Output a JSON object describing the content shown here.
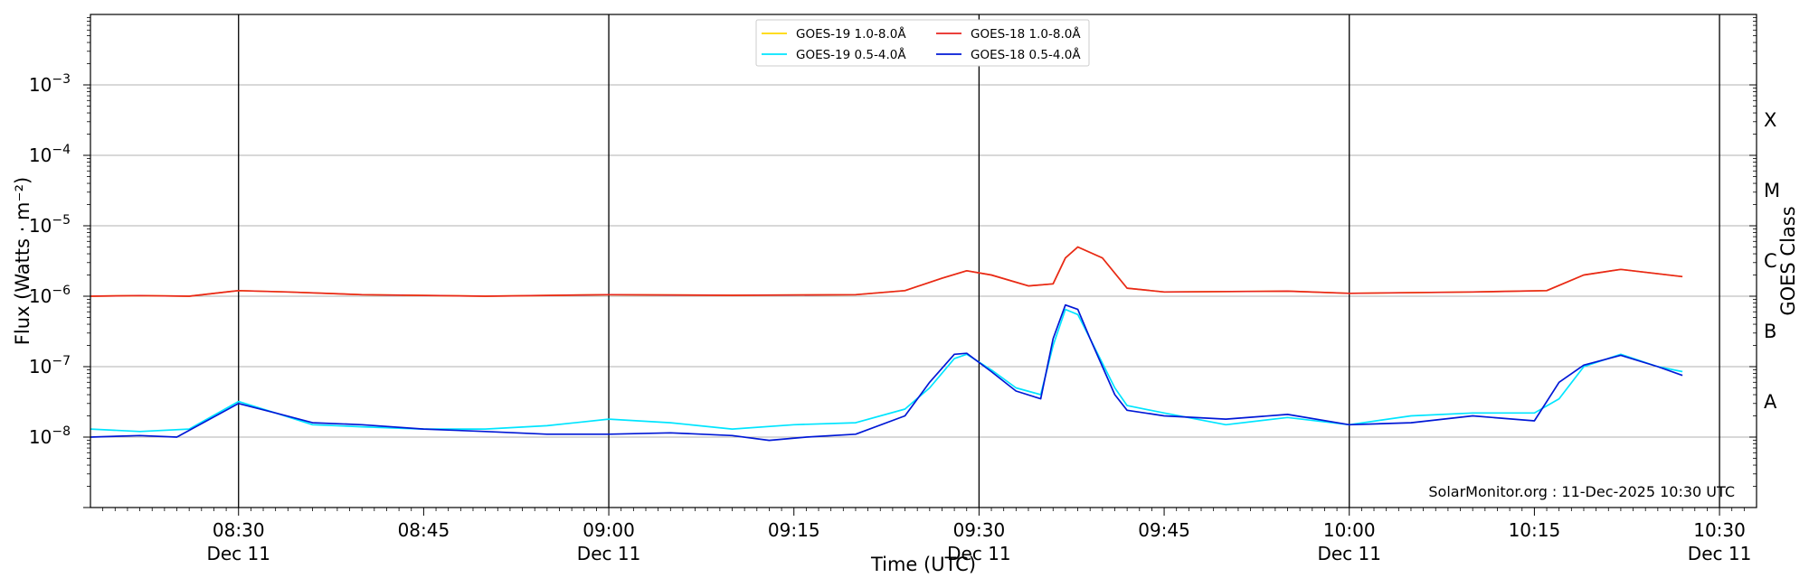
{
  "chart_data": {
    "type": "line",
    "xlabel": "Time (UTC)",
    "ylabel": "Flux (Watts · m⁻²)",
    "right_label": "GOES Class",
    "credit": "SolarMonitor.org : 11-Dec-2025 10:30 UTC",
    "ylim_log10": [
      -9,
      -2
    ],
    "y_scale": "log",
    "grid": "horizontal at decades",
    "legend_placement": "top-center",
    "x_range": [
      "08:18",
      "10:33"
    ],
    "x_ticks": [
      {
        "time": "08:30",
        "date": "Dec 11",
        "major": true
      },
      {
        "time": "08:45",
        "date": "",
        "major": false
      },
      {
        "time": "09:00",
        "date": "Dec 11",
        "major": true
      },
      {
        "time": "09:15",
        "date": "",
        "major": false
      },
      {
        "time": "09:30",
        "date": "Dec 11",
        "major": true
      },
      {
        "time": "09:45",
        "date": "",
        "major": false
      },
      {
        "time": "10:00",
        "date": "Dec 11",
        "major": true
      },
      {
        "time": "10:15",
        "date": "",
        "major": false
      },
      {
        "time": "10:30",
        "date": "Dec 11",
        "major": true
      }
    ],
    "y_ticks": [
      {
        "base": "10",
        "exp": "−8",
        "value": -8
      },
      {
        "base": "10",
        "exp": "−7",
        "value": -7
      },
      {
        "base": "10",
        "exp": "−6",
        "value": -6
      },
      {
        "base": "10",
        "exp": "−5",
        "value": -5
      },
      {
        "base": "10",
        "exp": "−4",
        "value": -4
      },
      {
        "base": "10",
        "exp": "−3",
        "value": -3
      }
    ],
    "goes_classes": [
      {
        "label": "A",
        "log10": -7.5
      },
      {
        "label": "B",
        "log10": -6.5
      },
      {
        "label": "C",
        "log10": -5.5
      },
      {
        "label": "M",
        "log10": -4.5
      },
      {
        "label": "X",
        "log10": -3.5
      }
    ],
    "series": [
      {
        "name": "GOES-19 1.0-8.0Å",
        "color": "#ffd700",
        "x": [
          "08:18",
          "08:22",
          "08:26",
          "08:30",
          "08:34",
          "08:40",
          "08:50",
          "09:00",
          "09:10",
          "09:20",
          "09:24",
          "09:27",
          "09:29",
          "09:31",
          "09:34",
          "09:36",
          "09:37",
          "09:38",
          "09:40",
          "09:42",
          "09:45",
          "09:55",
          "10:00",
          "10:10",
          "10:16",
          "10:19",
          "10:22",
          "10:27"
        ],
        "values": [
          1e-06,
          1.02e-06,
          1e-06,
          1.2e-06,
          1.15e-06,
          1.05e-06,
          1e-06,
          1.05e-06,
          1.03e-06,
          1.05e-06,
          1.2e-06,
          1.8e-06,
          2.3e-06,
          2e-06,
          1.4e-06,
          1.5e-06,
          3.5e-06,
          5e-06,
          3.5e-06,
          1.3e-06,
          1.15e-06,
          1.18e-06,
          1.1e-06,
          1.15e-06,
          1.2e-06,
          2e-06,
          2.4e-06,
          1.9e-06
        ]
      },
      {
        "name": "GOES-18 1.0-8.0Å",
        "color": "#e8251f",
        "x": [
          "08:18",
          "08:22",
          "08:26",
          "08:30",
          "08:34",
          "08:40",
          "08:50",
          "09:00",
          "09:10",
          "09:20",
          "09:24",
          "09:27",
          "09:29",
          "09:31",
          "09:34",
          "09:36",
          "09:37",
          "09:38",
          "09:40",
          "09:42",
          "09:45",
          "09:55",
          "10:00",
          "10:10",
          "10:16",
          "10:19",
          "10:22",
          "10:27"
        ],
        "values": [
          1e-06,
          1.02e-06,
          1e-06,
          1.2e-06,
          1.15e-06,
          1.05e-06,
          1e-06,
          1.05e-06,
          1.03e-06,
          1.05e-06,
          1.2e-06,
          1.8e-06,
          2.3e-06,
          2e-06,
          1.4e-06,
          1.5e-06,
          3.5e-06,
          5e-06,
          3.5e-06,
          1.3e-06,
          1.15e-06,
          1.18e-06,
          1.1e-06,
          1.15e-06,
          1.2e-06,
          2e-06,
          2.4e-06,
          1.9e-06
        ]
      },
      {
        "name": "GOES-19 0.5-4.0Å",
        "color": "#00e5ff",
        "x": [
          "08:18",
          "08:22",
          "08:26",
          "08:30",
          "08:33",
          "08:36",
          "08:40",
          "08:45",
          "08:50",
          "08:55",
          "09:00",
          "09:05",
          "09:10",
          "09:15",
          "09:20",
          "09:24",
          "09:26",
          "09:28",
          "09:29",
          "09:31",
          "09:33",
          "09:35",
          "09:36",
          "09:37",
          "09:38",
          "09:39",
          "09:41",
          "09:42",
          "09:45",
          "09:50",
          "09:55",
          "10:00",
          "10:05",
          "10:10",
          "10:15",
          "10:17",
          "10:19",
          "10:22",
          "10:25",
          "10:27"
        ],
        "values": [
          1.3e-08,
          1.2e-08,
          1.3e-08,
          3.2e-08,
          2.2e-08,
          1.5e-08,
          1.4e-08,
          1.3e-08,
          1.3e-08,
          1.45e-08,
          1.8e-08,
          1.6e-08,
          1.3e-08,
          1.5e-08,
          1.6e-08,
          2.5e-08,
          5e-08,
          1.3e-07,
          1.5e-07,
          9e-08,
          5e-08,
          4e-08,
          2e-07,
          6.5e-07,
          5.5e-07,
          2.5e-07,
          5e-08,
          2.8e-08,
          2.2e-08,
          1.5e-08,
          1.9e-08,
          1.5e-08,
          2e-08,
          2.2e-08,
          2.2e-08,
          3.5e-08,
          1e-07,
          1.5e-07,
          1e-07,
          8.5e-08
        ]
      },
      {
        "name": "GOES-18 0.5-4.0Å",
        "color": "#0018d6",
        "x": [
          "08:18",
          "08:22",
          "08:25",
          "08:30",
          "08:33",
          "08:36",
          "08:40",
          "08:45",
          "08:50",
          "08:55",
          "09:00",
          "09:05",
          "09:10",
          "09:13",
          "09:16",
          "09:20",
          "09:24",
          "09:26",
          "09:28",
          "09:29",
          "09:31",
          "09:33",
          "09:35",
          "09:36",
          "09:37",
          "09:38",
          "09:39",
          "09:41",
          "09:42",
          "09:45",
          "09:50",
          "09:55",
          "10:00",
          "10:05",
          "10:10",
          "10:15",
          "10:17",
          "10:19",
          "10:22",
          "10:25",
          "10:27"
        ],
        "values": [
          1e-08,
          1.05e-08,
          1e-08,
          3e-08,
          2.2e-08,
          1.6e-08,
          1.5e-08,
          1.3e-08,
          1.2e-08,
          1.1e-08,
          1.1e-08,
          1.15e-08,
          1.05e-08,
          9e-09,
          1e-08,
          1.1e-08,
          2e-08,
          6e-08,
          1.5e-07,
          1.55e-07,
          8.5e-08,
          4.5e-08,
          3.5e-08,
          2.5e-07,
          7.5e-07,
          6.5e-07,
          2.5e-07,
          4e-08,
          2.4e-08,
          2e-08,
          1.8e-08,
          2.1e-08,
          1.5e-08,
          1.6e-08,
          2e-08,
          1.7e-08,
          6e-08,
          1.05e-07,
          1.45e-07,
          1e-07,
          7.5e-08
        ]
      }
    ]
  }
}
